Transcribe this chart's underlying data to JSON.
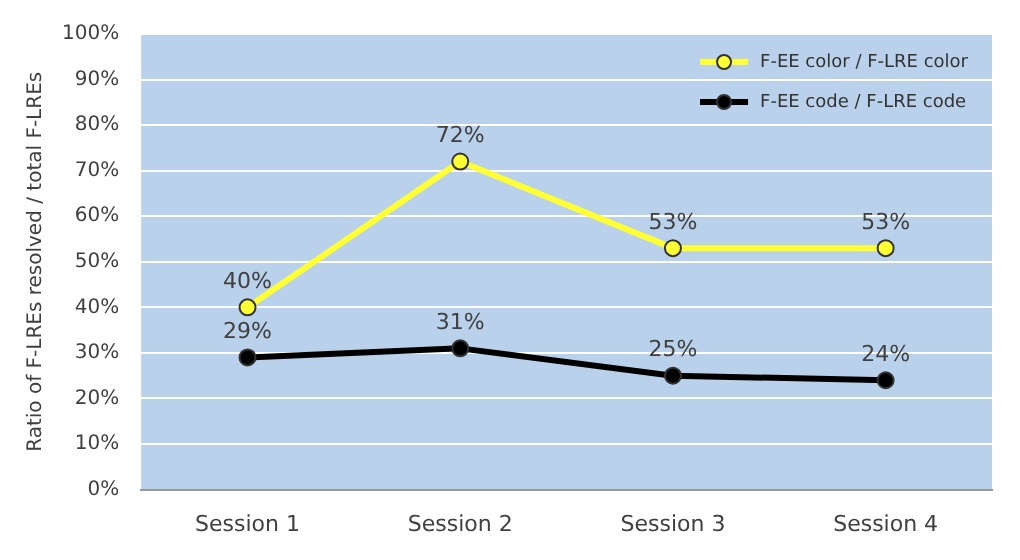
{
  "chart_data": {
    "type": "line",
    "ylabel": "Ratio of F-LREs resolved / total F-LREs",
    "categories": [
      "Session 1",
      "Session 2",
      "Session 3",
      "Session 4"
    ],
    "series": [
      {
        "name": "F-EE color / F-LRE color",
        "color": "#ffff33",
        "values": [
          40,
          72,
          53,
          53
        ],
        "value_labels": [
          "40%",
          "72%",
          "53%",
          "53%"
        ]
      },
      {
        "name": "F-EE code / F-LRE code",
        "color": "#000000",
        "values": [
          29,
          31,
          25,
          24
        ],
        "value_labels": [
          "29%",
          "31%",
          "25%",
          "24%"
        ]
      }
    ],
    "ylim": [
      0,
      100
    ],
    "yticks": [
      {
        "value": 0,
        "label": "0%"
      },
      {
        "value": 10,
        "label": "10%"
      },
      {
        "value": 20,
        "label": "20%"
      },
      {
        "value": 30,
        "label": "30%"
      },
      {
        "value": 40,
        "label": "40%"
      },
      {
        "value": 50,
        "label": "50%"
      },
      {
        "value": 60,
        "label": "60%"
      },
      {
        "value": 70,
        "label": "70%"
      },
      {
        "value": 80,
        "label": "80%"
      },
      {
        "value": 90,
        "label": "90%"
      },
      {
        "value": 100,
        "label": "100%"
      }
    ],
    "grid": "y",
    "legend": "top right",
    "marker": "circle",
    "line_style": "solid"
  }
}
